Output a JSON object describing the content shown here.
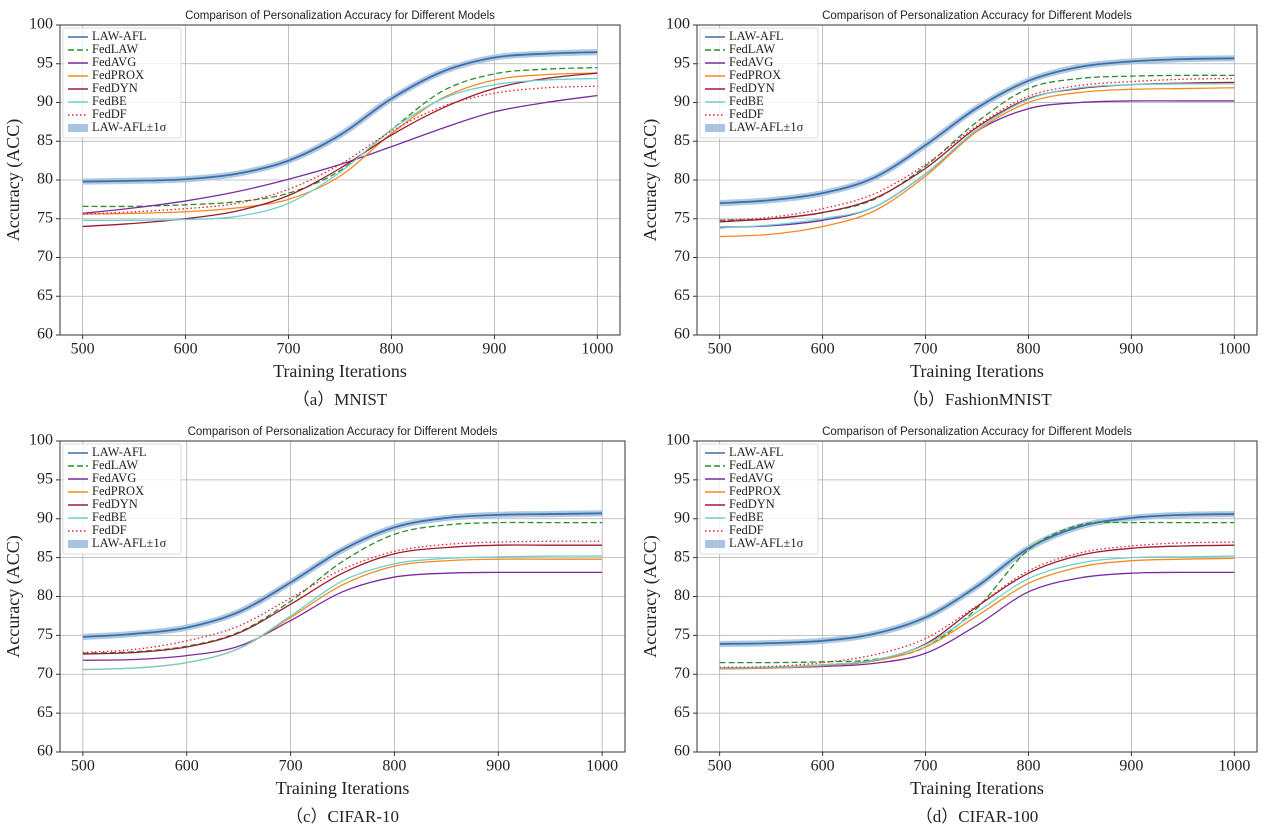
{
  "chart_data": [
    {
      "type": "line",
      "title": "Comparison of Personalization Accuracy for Different Models",
      "xlabel": "Training Iterations",
      "ylabel": "Accuracy (ACC)",
      "caption": "（a）MNIST",
      "x": [
        500,
        550,
        600,
        650,
        700,
        750,
        800,
        850,
        900,
        950,
        1000
      ],
      "xlim": [
        478,
        1022
      ],
      "xticks": [
        500,
        600,
        700,
        800,
        900,
        1000
      ],
      "ylim": [
        60,
        100
      ],
      "yticks": [
        60,
        65,
        70,
        75,
        80,
        85,
        90,
        95,
        100
      ],
      "grid": true,
      "legend": "upper left",
      "series": [
        {
          "name": "LAW-AFL",
          "color": "#3f6fa8",
          "dash": "solid",
          "values": [
            79.8,
            79.9,
            80.1,
            80.8,
            82.5,
            85.8,
            90.5,
            94.0,
            95.8,
            96.3,
            96.5
          ]
        },
        {
          "name": "FedLAW",
          "color": "#2e8b2e",
          "dash": "dashed",
          "values": [
            76.6,
            76.6,
            76.8,
            77.2,
            78.3,
            81.2,
            86.5,
            91.5,
            93.7,
            94.3,
            94.5
          ]
        },
        {
          "name": "FedAVG",
          "color": "#7b2b9e",
          "dash": "solid",
          "values": [
            75.7,
            76.4,
            77.3,
            78.5,
            80.1,
            82.0,
            84.3,
            86.7,
            88.8,
            90.0,
            90.9
          ]
        },
        {
          "name": "FedPROX",
          "color": "#f5891f",
          "dash": "solid",
          "values": [
            75.6,
            75.7,
            75.9,
            76.4,
            77.5,
            80.5,
            86.0,
            90.6,
            92.9,
            93.6,
            93.8
          ]
        },
        {
          "name": "FedDYN",
          "color": "#9b1b30",
          "dash": "solid",
          "values": [
            74.0,
            74.4,
            75.0,
            76.0,
            78.0,
            81.5,
            85.8,
            89.3,
            91.8,
            93.1,
            93.8
          ]
        },
        {
          "name": "FedBE",
          "color": "#6fd0d0",
          "dash": "solid",
          "values": [
            74.8,
            74.8,
            74.9,
            75.3,
            77.0,
            81.0,
            86.5,
            90.5,
            92.3,
            92.9,
            93.1
          ]
        },
        {
          "name": "FedDF",
          "color": "#e0202a",
          "dash": "dotted",
          "values": [
            75.6,
            75.9,
            76.3,
            77.0,
            78.8,
            82.0,
            86.3,
            89.5,
            91.2,
            91.9,
            92.1
          ]
        }
      ],
      "band": {
        "name": "LAW-AFL±1σ",
        "color": "#a8c4e0",
        "sigma": 0.4
      }
    },
    {
      "type": "line",
      "title": "Comparison of Personalization Accuracy for Different Models",
      "xlabel": "Training Iterations",
      "ylabel": "Accuracy (ACC)",
      "caption": "（b）FashionMNIST",
      "x": [
        500,
        550,
        600,
        650,
        700,
        750,
        800,
        850,
        900,
        950,
        1000
      ],
      "xlim": [
        478,
        1022
      ],
      "xticks": [
        500,
        600,
        700,
        800,
        900,
        1000
      ],
      "ylim": [
        60,
        100
      ],
      "yticks": [
        60,
        65,
        70,
        75,
        80,
        85,
        90,
        95,
        100
      ],
      "grid": true,
      "legend": "upper left",
      "series": [
        {
          "name": "LAW-AFL",
          "color": "#3f6fa8",
          "dash": "solid",
          "values": [
            77.0,
            77.4,
            78.3,
            80.3,
            84.5,
            89.3,
            92.8,
            94.6,
            95.3,
            95.6,
            95.7
          ]
        },
        {
          "name": "FedLAW",
          "color": "#2e8b2e",
          "dash": "dashed",
          "values": [
            74.8,
            75.0,
            75.8,
            77.5,
            81.8,
            87.5,
            91.8,
            93.1,
            93.4,
            93.5,
            93.5
          ]
        },
        {
          "name": "FedAVG",
          "color": "#7b2b9e",
          "dash": "solid",
          "values": [
            73.9,
            74.1,
            74.8,
            76.5,
            80.8,
            86.3,
            89.2,
            90.0,
            90.2,
            90.2,
            90.2
          ]
        },
        {
          "name": "FedPROX",
          "color": "#f5891f",
          "dash": "solid",
          "values": [
            72.7,
            73.0,
            74.0,
            76.0,
            80.5,
            86.3,
            90.0,
            91.3,
            91.7,
            91.8,
            91.9
          ]
        },
        {
          "name": "FedDYN",
          "color": "#9b1b30",
          "dash": "solid",
          "values": [
            74.6,
            75.0,
            75.8,
            77.6,
            81.5,
            86.8,
            90.5,
            91.8,
            92.3,
            92.5,
            92.6
          ]
        },
        {
          "name": "FedBE",
          "color": "#6fd0d0",
          "dash": "solid",
          "values": [
            73.8,
            74.2,
            75.0,
            76.5,
            80.8,
            86.5,
            90.4,
            91.9,
            92.3,
            92.4,
            92.4
          ]
        },
        {
          "name": "FedDF",
          "color": "#e0202a",
          "dash": "dotted",
          "values": [
            74.8,
            75.2,
            76.3,
            78.2,
            82.0,
            87.0,
            90.8,
            92.2,
            92.7,
            93.0,
            93.1
          ]
        }
      ],
      "band": {
        "name": "LAW-AFL±1σ",
        "color": "#a8c4e0",
        "sigma": 0.4
      }
    },
    {
      "type": "line",
      "title": "Comparison of Personalization Accuracy for Different Models",
      "xlabel": "Training Iterations",
      "ylabel": "Accuracy (ACC)",
      "caption": "（c）CIFAR-10",
      "x": [
        500,
        550,
        600,
        650,
        700,
        750,
        800,
        850,
        900,
        950,
        1000
      ],
      "xlim": [
        478,
        1022
      ],
      "xticks": [
        500,
        600,
        700,
        800,
        900,
        1000
      ],
      "ylim": [
        60,
        100
      ],
      "yticks": [
        60,
        65,
        70,
        75,
        80,
        85,
        90,
        95,
        100
      ],
      "grid": true,
      "legend": "upper left",
      "series": [
        {
          "name": "LAW-AFL",
          "color": "#3f6fa8",
          "dash": "solid",
          "values": [
            74.8,
            75.2,
            76.0,
            78.0,
            81.8,
            86.0,
            88.9,
            90.1,
            90.5,
            90.6,
            90.7
          ]
        },
        {
          "name": "FedLAW",
          "color": "#2e8b2e",
          "dash": "dashed",
          "values": [
            72.7,
            72.9,
            73.6,
            75.4,
            79.4,
            84.5,
            88.0,
            89.2,
            89.5,
            89.5,
            89.5
          ]
        },
        {
          "name": "FedAVG",
          "color": "#7b2b9e",
          "dash": "solid",
          "values": [
            71.8,
            71.9,
            72.4,
            73.6,
            76.9,
            80.6,
            82.5,
            83.0,
            83.1,
            83.1,
            83.1
          ]
        },
        {
          "name": "FedPROX",
          "color": "#f5891f",
          "dash": "solid",
          "values": [
            70.6,
            70.8,
            71.5,
            73.3,
            77.3,
            81.5,
            83.9,
            84.6,
            84.8,
            84.8,
            84.8
          ]
        },
        {
          "name": "FedDYN",
          "color": "#9b1b30",
          "dash": "solid",
          "values": [
            72.6,
            72.8,
            73.5,
            75.3,
            79.0,
            83.0,
            85.5,
            86.3,
            86.6,
            86.6,
            86.6
          ]
        },
        {
          "name": "FedBE",
          "color": "#6fd0d0",
          "dash": "solid",
          "values": [
            70.6,
            70.8,
            71.5,
            73.3,
            77.5,
            82.0,
            84.2,
            84.9,
            85.1,
            85.2,
            85.2
          ]
        },
        {
          "name": "FedDF",
          "color": "#e0202a",
          "dash": "dotted",
          "values": [
            72.8,
            73.2,
            74.3,
            76.2,
            79.8,
            83.5,
            85.8,
            86.7,
            87.0,
            87.1,
            87.1
          ]
        }
      ],
      "band": {
        "name": "LAW-AFL±1σ",
        "color": "#a8c4e0",
        "sigma": 0.4
      }
    },
    {
      "type": "line",
      "title": "Comparison of Personalization Accuracy for Different Models",
      "xlabel": "Training Iterations",
      "ylabel": "Accuracy (ACC)",
      "caption": "（d）CIFAR-100",
      "x": [
        500,
        550,
        600,
        650,
        700,
        750,
        800,
        850,
        900,
        950,
        1000
      ],
      "xlim": [
        478,
        1022
      ],
      "xticks": [
        500,
        600,
        700,
        800,
        900,
        1000
      ],
      "ylim": [
        60,
        100
      ],
      "yticks": [
        60,
        65,
        70,
        75,
        80,
        85,
        90,
        95,
        100
      ],
      "grid": true,
      "legend": "upper left",
      "series": [
        {
          "name": "LAW-AFL",
          "color": "#3f6fa8",
          "dash": "solid",
          "values": [
            73.9,
            74.0,
            74.3,
            75.2,
            77.3,
            81.3,
            86.2,
            89.0,
            90.1,
            90.5,
            90.6
          ]
        },
        {
          "name": "FedLAW",
          "color": "#2e8b2e",
          "dash": "dashed",
          "values": [
            71.5,
            71.5,
            71.6,
            71.9,
            73.5,
            78.5,
            86.0,
            89.2,
            89.5,
            89.5,
            89.5
          ]
        },
        {
          "name": "FedAVG",
          "color": "#7b2b9e",
          "dash": "solid",
          "values": [
            70.7,
            70.8,
            71.0,
            71.4,
            72.7,
            76.3,
            80.6,
            82.4,
            83.0,
            83.1,
            83.1
          ]
        },
        {
          "name": "FedPROX",
          "color": "#f5891f",
          "dash": "solid",
          "values": [
            70.7,
            70.8,
            71.1,
            71.7,
            73.5,
            77.5,
            81.7,
            83.8,
            84.6,
            84.8,
            84.9
          ]
        },
        {
          "name": "FedDYN",
          "color": "#9b1b30",
          "dash": "solid",
          "values": [
            70.8,
            70.9,
            71.2,
            71.8,
            73.9,
            78.7,
            83.0,
            85.3,
            86.2,
            86.5,
            86.6
          ]
        },
        {
          "name": "FedBE",
          "color": "#6fd0d0",
          "dash": "solid",
          "values": [
            70.8,
            70.9,
            71.2,
            71.8,
            73.8,
            78.0,
            82.3,
            84.3,
            85.0,
            85.1,
            85.2
          ]
        },
        {
          "name": "FedDF",
          "color": "#e0202a",
          "dash": "dotted",
          "values": [
            70.9,
            71.0,
            71.5,
            72.5,
            74.6,
            78.8,
            83.3,
            85.6,
            86.5,
            86.9,
            87.0
          ]
        }
      ],
      "band": {
        "name": "LAW-AFL±1σ",
        "color": "#a8c4e0",
        "sigma": 0.4
      }
    }
  ]
}
